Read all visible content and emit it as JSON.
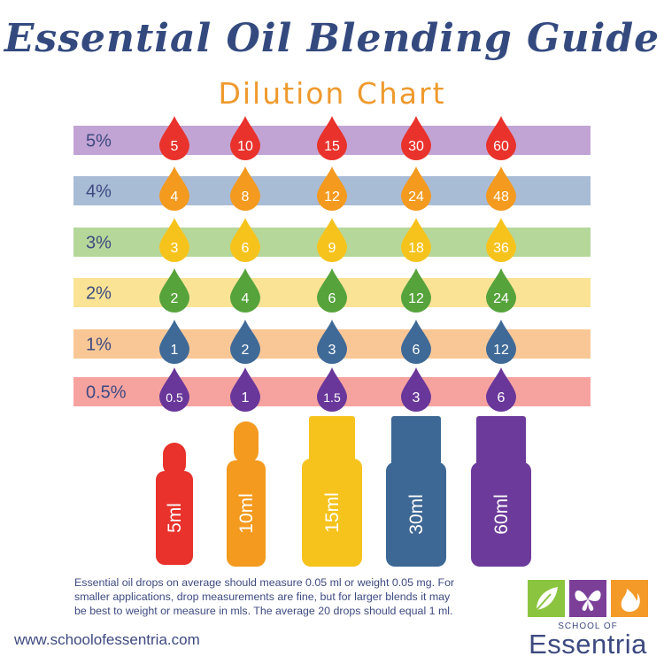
{
  "title": "Essential Oil Blending Guide",
  "subtitle": "Dilution Chart",
  "colors": {
    "title": "#344a7f",
    "subtitle": "#ee9a2e",
    "text": "#3d4a80",
    "logo_green": "#8bc43f",
    "logo_purple": "#7b3f98",
    "logo_orange": "#f39a29"
  },
  "chart_data": {
    "type": "table",
    "bottle_sizes": [
      "5ml",
      "10ml",
      "15ml",
      "30ml",
      "60ml"
    ],
    "rows": [
      {
        "label": "5%",
        "drops": [
          "5",
          "10",
          "15",
          "30",
          "60"
        ],
        "band_color": "#c2a4d4",
        "drop_color": "#e8322b"
      },
      {
        "label": "4%",
        "drops": [
          "4",
          "8",
          "12",
          "24",
          "48"
        ],
        "band_color": "#a9bcd6",
        "drop_color": "#f39a1f"
      },
      {
        "label": "3%",
        "drops": [
          "3",
          "6",
          "9",
          "18",
          "36"
        ],
        "band_color": "#b6d79a",
        "drop_color": "#f6c31d"
      },
      {
        "label": "2%",
        "drops": [
          "2",
          "4",
          "6",
          "12",
          "24"
        ],
        "band_color": "#fbe396",
        "drop_color": "#56a33c"
      },
      {
        "label": "1%",
        "drops": [
          "1",
          "2",
          "3",
          "6",
          "12"
        ],
        "band_color": "#f9c796",
        "drop_color": "#3f6a98"
      },
      {
        "label": "0.5%",
        "drops": [
          "0.5",
          "1",
          "1.5",
          "3",
          "6"
        ],
        "band_color": "#f6a3a0",
        "drop_color": "#69379a"
      }
    ],
    "bottles": [
      {
        "label": "5ml",
        "color": "#e8322b"
      },
      {
        "label": "10ml",
        "color": "#f39a1f"
      },
      {
        "label": "15ml",
        "color": "#f6c31d"
      },
      {
        "label": "30ml",
        "color": "#3d6794"
      },
      {
        "label": "60ml",
        "color": "#6c3a9b"
      }
    ]
  },
  "footnote": {
    "line1": "Essential oil drops on average should measure 0.05 ml or weight 0.05 mg.  For",
    "line2": "smaller applications, drop measurements are fine, but for larger blends it may",
    "line3": "be best to weight or measure in mls.  The average 20 drops should equal 1 ml."
  },
  "website": "www.schoolofessentria.com",
  "logo": {
    "small_text": "SCHOOL OF",
    "name": "Essentria"
  }
}
